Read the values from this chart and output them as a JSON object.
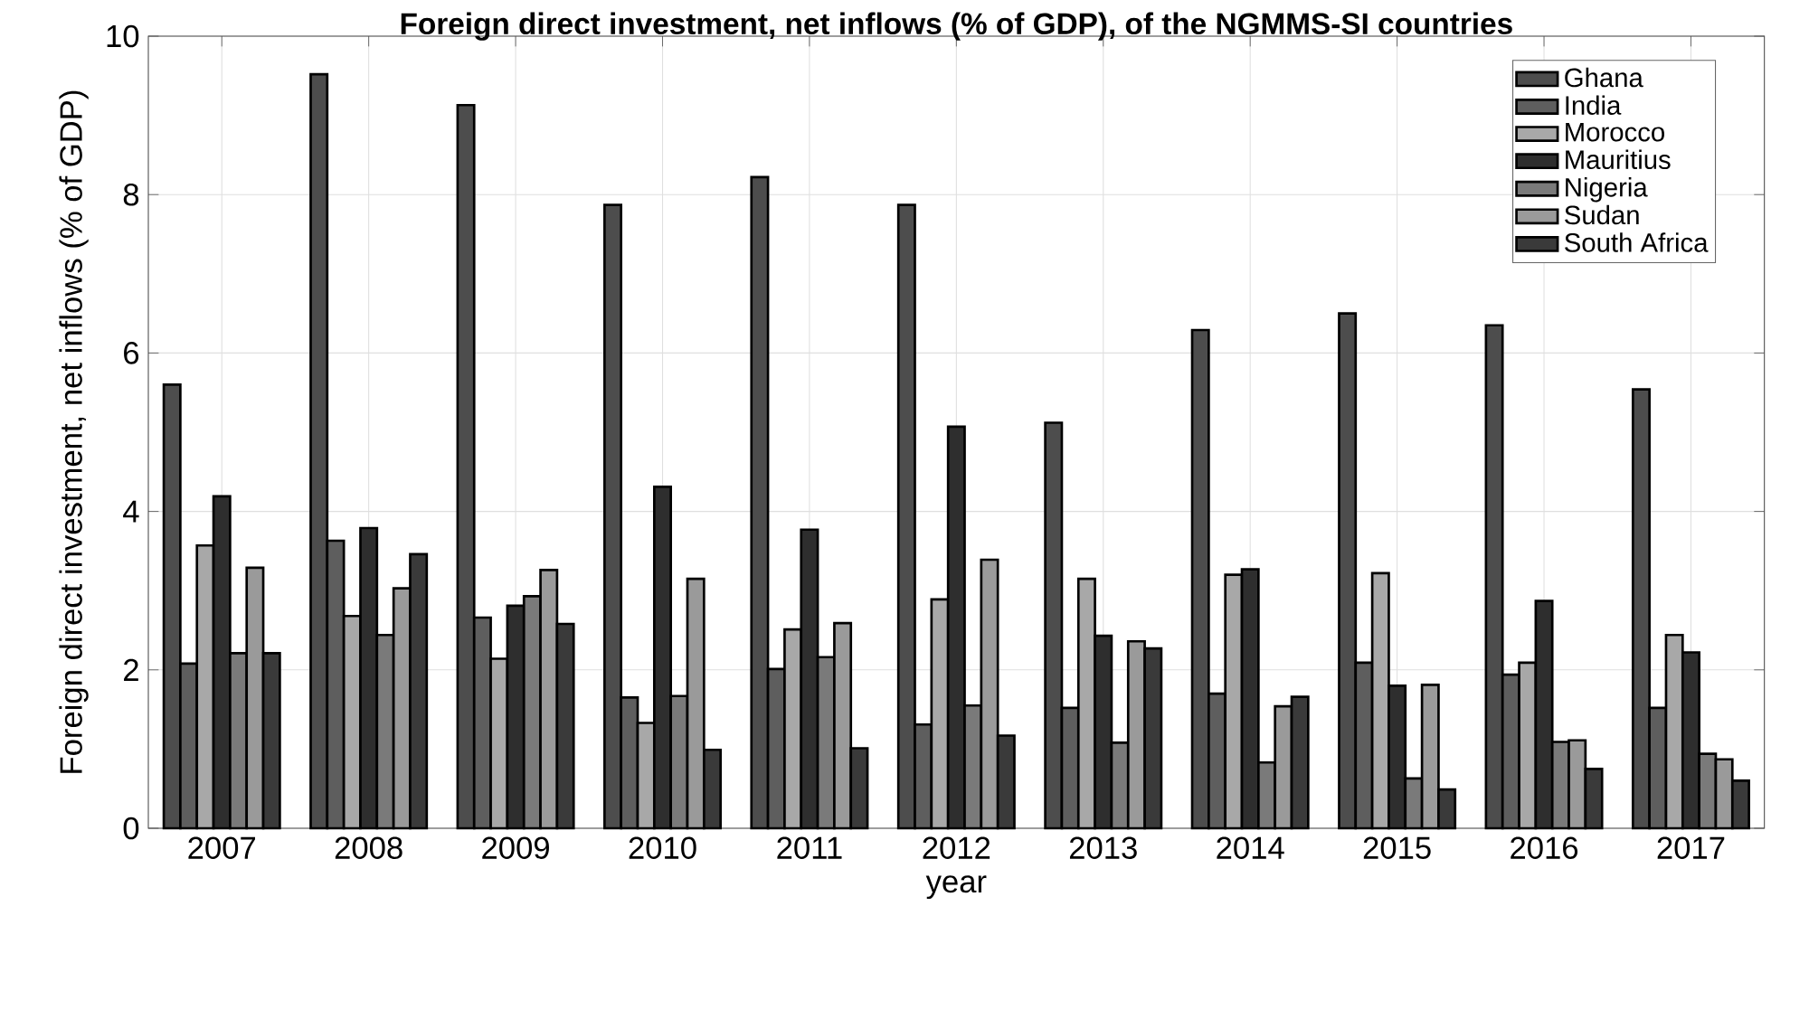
{
  "chart_data": {
    "type": "bar",
    "title": "Foreign direct investment, net inflows (% of GDP), of the NGMMS-SI countries",
    "xlabel": "year",
    "ylabel": "Foreign direct investment, net inflows (% of GDP)",
    "categories": [
      "2007",
      "2008",
      "2009",
      "2010",
      "2011",
      "2012",
      "2013",
      "2014",
      "2015",
      "2016",
      "2017"
    ],
    "series": [
      {
        "name": "Ghana",
        "color": "#4d4d4d",
        "values": [
          5.6,
          9.52,
          9.13,
          7.87,
          8.22,
          7.87,
          5.12,
          6.29,
          6.5,
          6.35,
          5.54
        ]
      },
      {
        "name": "India",
        "color": "#5e5e5e",
        "values": [
          2.08,
          3.63,
          2.66,
          1.65,
          2.01,
          1.31,
          1.52,
          1.7,
          2.09,
          1.94,
          1.52
        ]
      },
      {
        "name": "Morocco",
        "color": "#a8a8a8",
        "values": [
          3.57,
          2.68,
          2.14,
          1.33,
          2.51,
          2.89,
          3.15,
          3.2,
          3.22,
          2.09,
          2.44
        ]
      },
      {
        "name": "Mauritius",
        "color": "#2e2e2e",
        "values": [
          4.19,
          3.79,
          2.81,
          4.31,
          3.77,
          5.07,
          2.43,
          3.27,
          1.8,
          2.87,
          2.22
        ]
      },
      {
        "name": "Nigeria",
        "color": "#7a7a7a",
        "values": [
          2.21,
          2.44,
          2.93,
          1.67,
          2.16,
          1.55,
          1.08,
          0.83,
          0.63,
          1.09,
          0.94
        ]
      },
      {
        "name": "Sudan",
        "color": "#9a9a9a",
        "values": [
          3.29,
          3.03,
          3.26,
          3.15,
          2.59,
          3.39,
          2.36,
          1.54,
          1.81,
          1.11,
          0.87
        ]
      },
      {
        "name": "South Africa",
        "color": "#3a3a3a",
        "values": [
          2.21,
          3.46,
          2.58,
          0.99,
          1.01,
          1.17,
          2.27,
          1.66,
          0.49,
          0.75,
          0.6
        ]
      }
    ],
    "ylim": [
      0,
      10
    ],
    "yticks": [
      0,
      2,
      4,
      6,
      8,
      10
    ],
    "grid": true,
    "legend": "top right"
  }
}
